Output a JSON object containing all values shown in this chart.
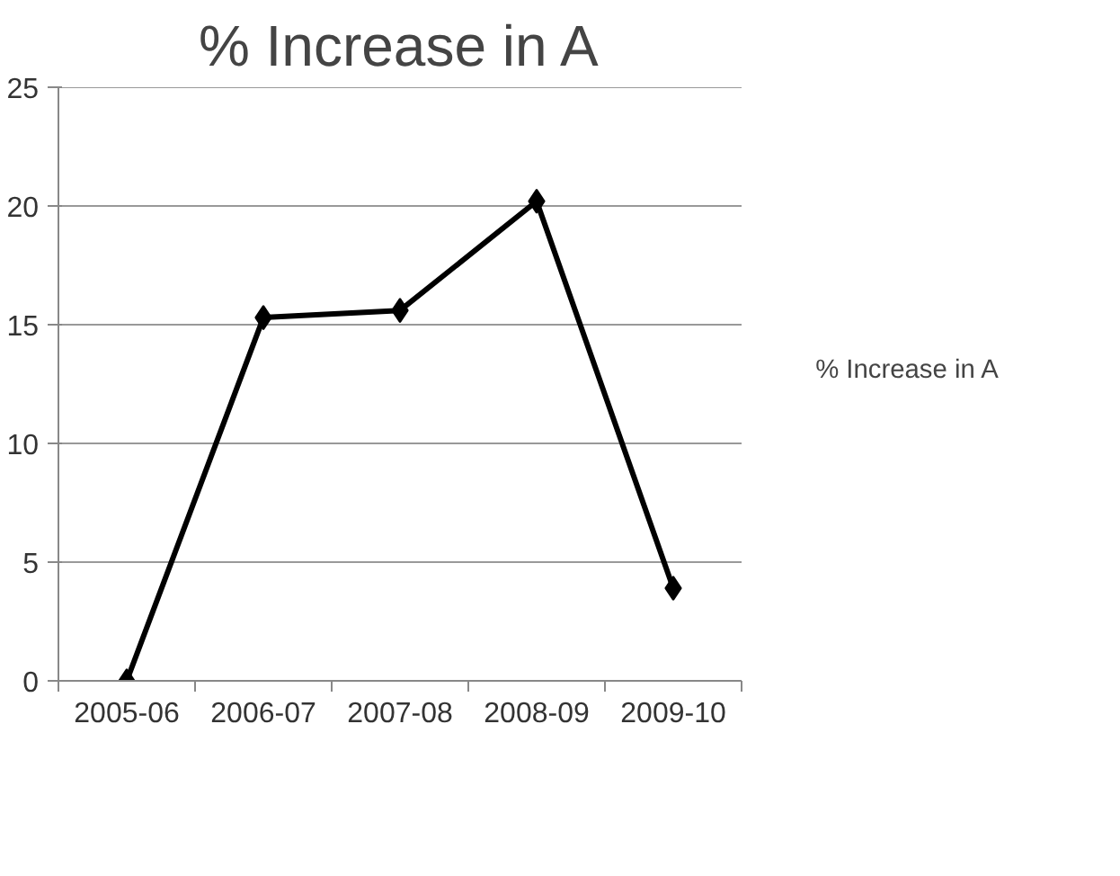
{
  "chart_data": {
    "type": "line",
    "title": "% Increase in A",
    "categories": [
      "2005-06",
      "2006-07",
      "2007-08",
      "2008-09",
      "2009-10"
    ],
    "series": [
      {
        "name": "% Increase in A",
        "color": "#000000",
        "values": [
          0,
          15.3,
          15.6,
          20.2,
          3.9
        ]
      }
    ],
    "ylim": [
      0,
      25
    ],
    "yticks": [
      0,
      5,
      10,
      15,
      20,
      25
    ],
    "grid": "y",
    "legend": "right",
    "marker": "diamond",
    "line_style": "solid"
  }
}
